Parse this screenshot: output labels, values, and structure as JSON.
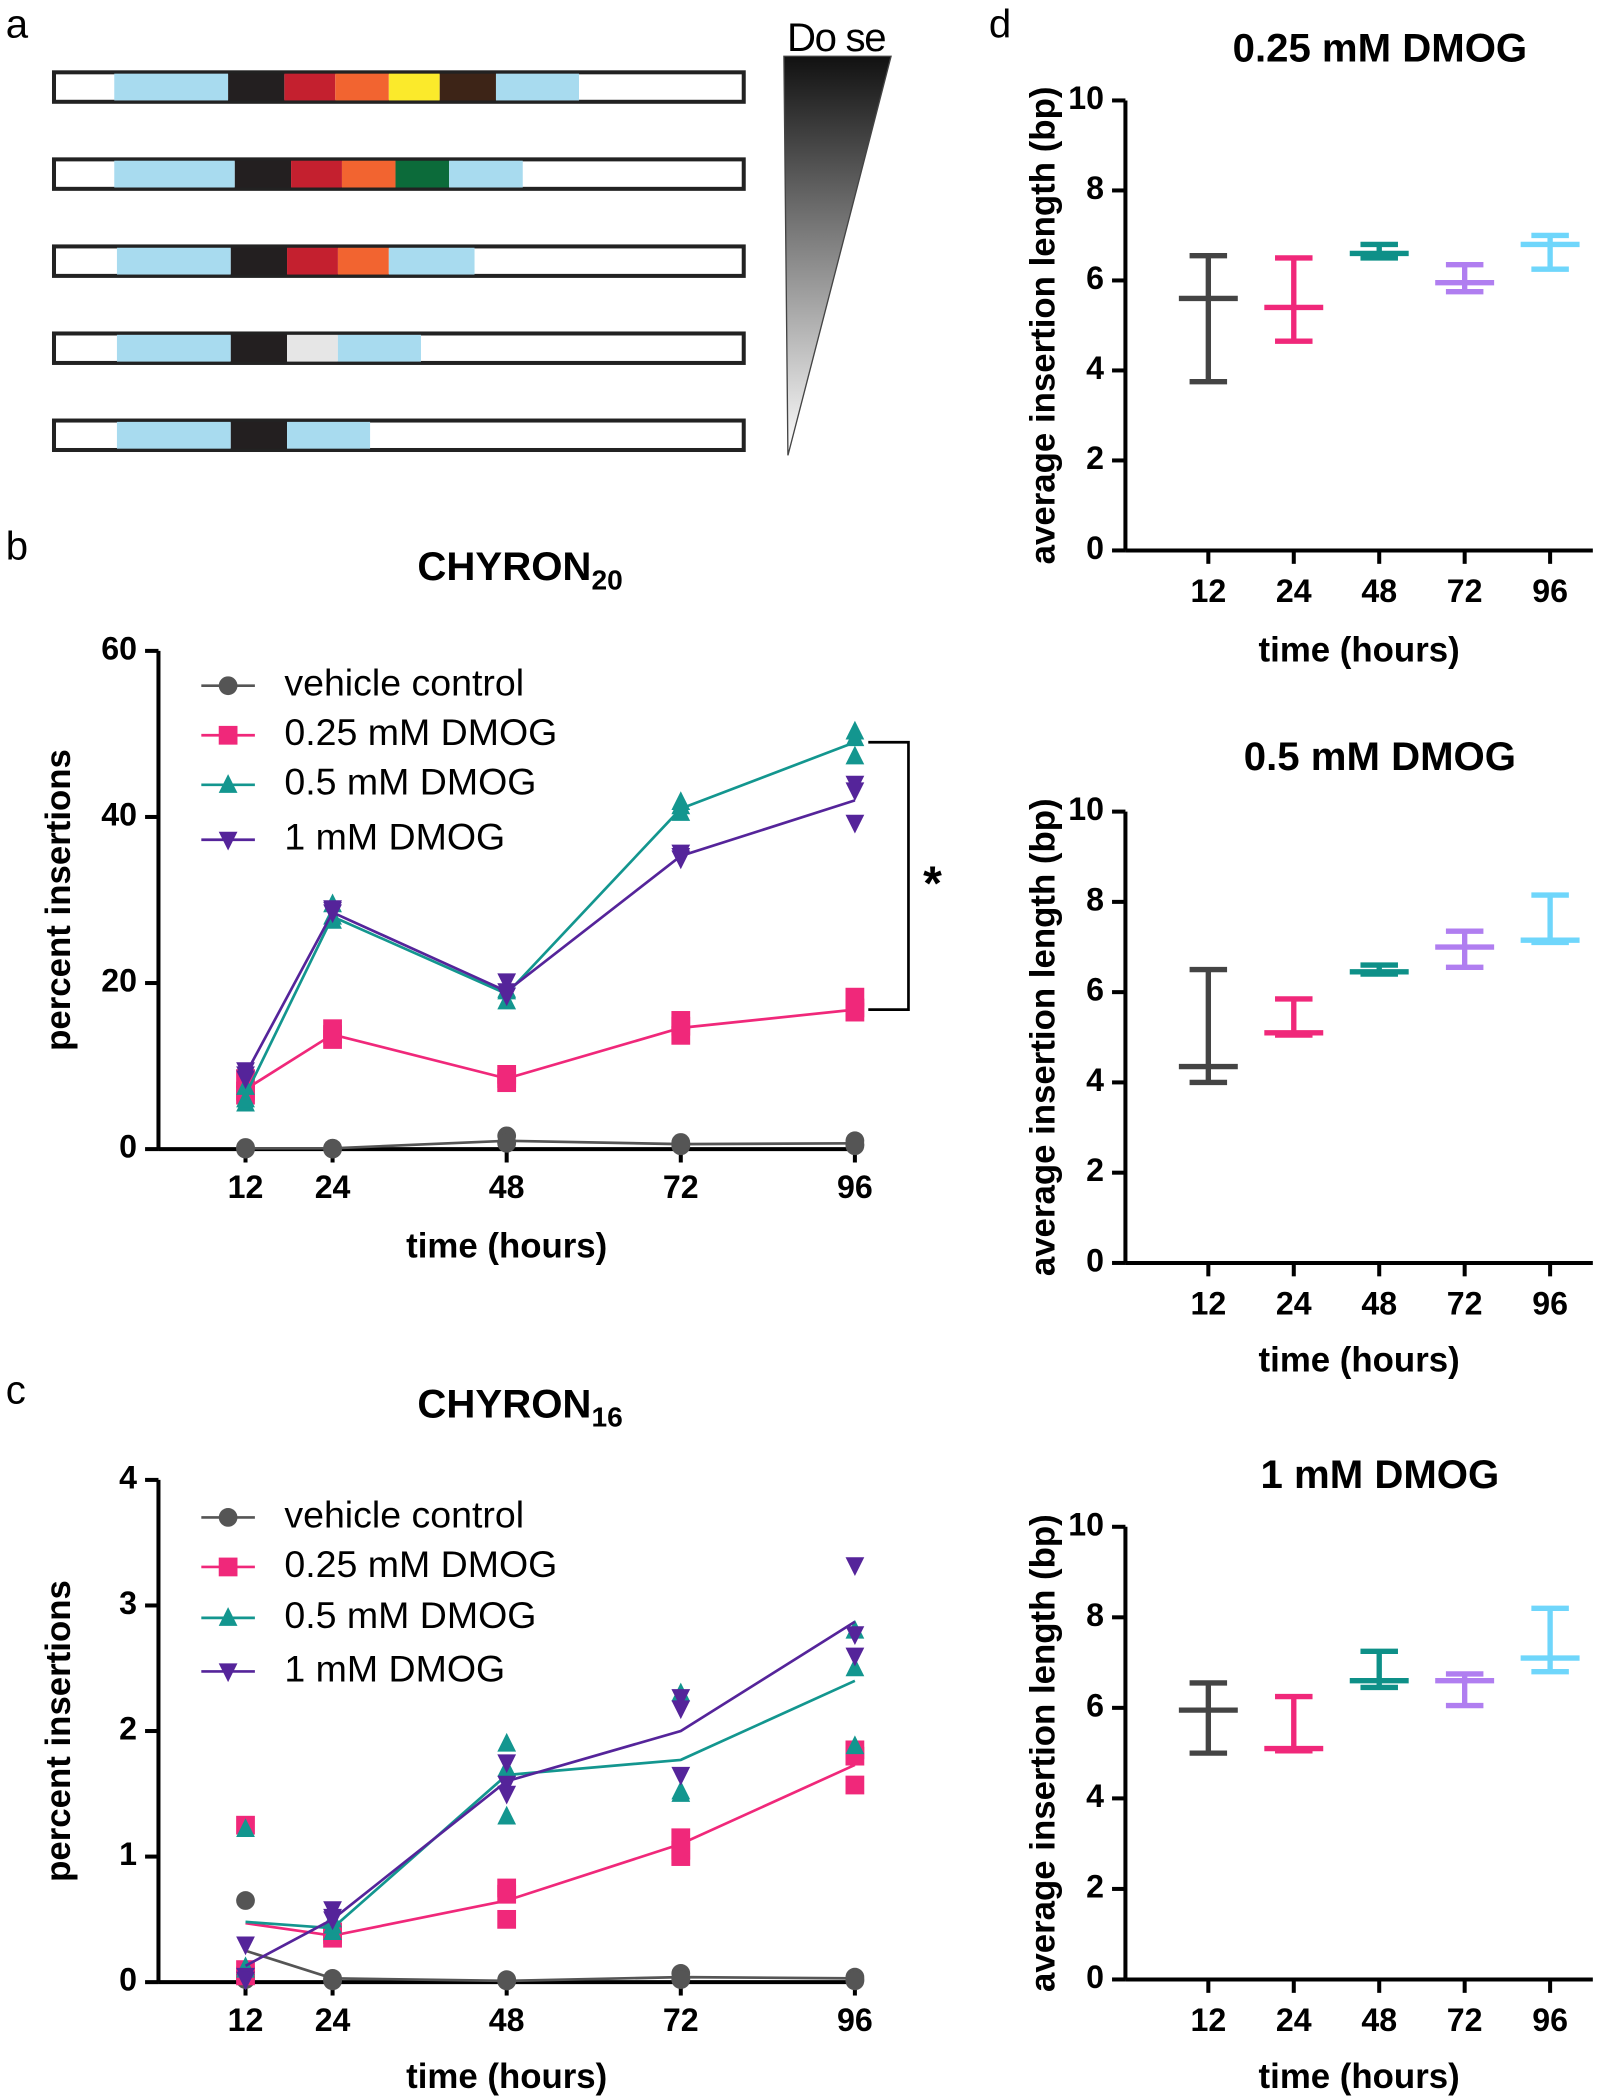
{
  "panel_labels": [
    "a",
    "b",
    "c",
    "d"
  ],
  "diagram": {
    "label": "Do se"
  },
  "chart_data": [
    {
      "type": "line",
      "title": "CHYRON",
      "title_subscript": "20",
      "xlabel": "time (hours)",
      "ylabel": "percent insertions",
      "x": [
        12,
        24,
        48,
        72,
        96
      ],
      "xlim": [
        0,
        96
      ],
      "xticks": [
        12,
        24,
        48,
        72,
        96
      ],
      "ylim": [
        0,
        60
      ],
      "yticks": [
        0,
        20,
        40,
        60
      ],
      "annotation": "*",
      "series": [
        {
          "name": "vehicle control",
          "color": "#555555",
          "marker": "circle",
          "values": [
            0.1,
            0.1,
            1.0,
            0.6,
            0.7
          ],
          "replicates": [
            [
              0,
              0.2,
              0.1
            ],
            [
              0,
              0.1,
              0.1
            ],
            [
              1.6,
              0.7,
              0.8
            ],
            [
              0.7,
              0.8,
              0.4
            ],
            [
              0.4,
              1.0,
              0.6
            ]
          ]
        },
        {
          "name": "0.25 mM DMOG",
          "color": "#f0287a",
          "marker": "square",
          "values": [
            7.2,
            13.8,
            8.5,
            14.6,
            16.8
          ],
          "replicates": [
            [
              6.5,
              8.5,
              7
            ],
            [
              13.2,
              14.5,
              13.8
            ],
            [
              8,
              9,
              8.5
            ],
            [
              13.7,
              15.5,
              14.8
            ],
            [
              16.5,
              18.3,
              17
            ]
          ]
        },
        {
          "name": "0.5 mM DMOG",
          "color": "#13968f",
          "marker": "triangle-up",
          "values": [
            6.5,
            28,
            18.7,
            41,
            49
          ],
          "replicates": [
            [
              5.5,
              7.5,
              6
            ],
            [
              27.5,
              29.5,
              28
            ],
            [
              17.8,
              19.2,
              19
            ],
            [
              40.5,
              41.8,
              41.3
            ],
            [
              47.3,
              50.3,
              49.5
            ]
          ]
        },
        {
          "name": "1 mM DMOG",
          "color": "#55249a",
          "marker": "triangle-down",
          "values": [
            9,
            28.5,
            19,
            35.3,
            42
          ],
          "replicates": [
            [
              9.5,
              8.5,
              9
            ],
            [
              28.5,
              29,
              28.8
            ],
            [
              20.2,
              19,
              18.5
            ],
            [
              35.7,
              35,
              35.3
            ],
            [
              39.3,
              43.2,
              44
            ]
          ]
        }
      ]
    },
    {
      "type": "line",
      "title": "CHYRON",
      "title_subscript": "16",
      "xlabel": "time (hours)",
      "ylabel": "percent insertions",
      "x": [
        12,
        24,
        48,
        72,
        96
      ],
      "xlim": [
        0,
        96
      ],
      "xticks": [
        12,
        24,
        48,
        72,
        96
      ],
      "ylim": [
        0,
        4
      ],
      "yticks": [
        0,
        1,
        2,
        3,
        4
      ],
      "series": [
        {
          "name": "vehicle control",
          "color": "#555555",
          "marker": "circle",
          "values": [
            0.25,
            0.03,
            0.01,
            0.04,
            0.03
          ],
          "replicates": [
            [
              0.65,
              0.02,
              0.05
            ],
            [
              0.02,
              0.03,
              0.01
            ],
            [
              0.02,
              0.01,
              0.01
            ],
            [
              0.07,
              0.03,
              0.02
            ],
            [
              0.04,
              0.02,
              0.01
            ]
          ]
        },
        {
          "name": "0.25 mM DMOG",
          "color": "#f0287a",
          "marker": "square",
          "values": [
            0.47,
            0.37,
            0.65,
            1.1,
            1.73
          ],
          "replicates": [
            [
              1.25,
              0.1,
              0.05
            ],
            [
              0.35,
              0.4,
              0.38
            ],
            [
              0.75,
              0.5,
              0.7
            ],
            [
              1.15,
              1.0,
              1.05
            ],
            [
              1.85,
              1.57,
              1.8
            ]
          ]
        },
        {
          "name": "0.5 mM DMOG",
          "color": "#13968f",
          "marker": "triangle-up",
          "values": [
            0.48,
            0.43,
            1.65,
            1.77,
            2.4
          ],
          "replicates": [
            [
              1.22,
              0.1,
              0.12
            ],
            [
              0.45,
              0.4,
              0.5
            ],
            [
              1.9,
              1.32,
              1.7
            ],
            [
              2.3,
              1.5,
              1.52
            ],
            [
              2.5,
              1.88,
              2.8
            ]
          ]
        },
        {
          "name": "1 mM DMOG",
          "color": "#55249a",
          "marker": "triangle-down",
          "values": [
            0.13,
            0.5,
            1.6,
            2.0,
            2.87
          ],
          "replicates": [
            [
              0.3,
              0.05,
              0.02
            ],
            [
              0.58,
              0.5,
              0.52
            ],
            [
              1.75,
              1.58,
              1.5
            ],
            [
              2.27,
              2.18,
              1.65
            ],
            [
              3.32,
              2.6,
              2.77
            ]
          ]
        }
      ]
    },
    {
      "type": "range",
      "title": "0.25 mM DMOG",
      "xlabel": "time (hours)",
      "ylabel": "average insertion length (bp)",
      "categories": [
        "12",
        "24",
        "48",
        "72",
        "96"
      ],
      "colors": [
        "#444444",
        "#f0287a",
        "#0e9088",
        "#b07ef0",
        "#6fd6fb"
      ],
      "ylim": [
        0,
        10
      ],
      "yticks": [
        0,
        2,
        4,
        6,
        8,
        10
      ],
      "min": [
        3.75,
        4.65,
        6.5,
        5.75,
        6.25
      ],
      "median": [
        5.6,
        5.4,
        6.6,
        5.95,
        6.8
      ],
      "max": [
        6.55,
        6.5,
        6.8,
        6.35,
        7.0
      ]
    },
    {
      "type": "range",
      "title": "0.5 mM DMOG",
      "xlabel": "time (hours)",
      "ylabel": "average insertion length (bp)",
      "categories": [
        "12",
        "24",
        "48",
        "72",
        "96"
      ],
      "colors": [
        "#444444",
        "#f0287a",
        "#0e9088",
        "#b07ef0",
        "#6fd6fb"
      ],
      "ylim": [
        0,
        10
      ],
      "yticks": [
        0,
        2,
        4,
        6,
        8,
        10
      ],
      "min": [
        4.0,
        5.05,
        6.4,
        6.55,
        7.1
      ],
      "median": [
        4.35,
        5.1,
        6.45,
        7.0,
        7.15
      ],
      "max": [
        6.5,
        5.85,
        6.6,
        7.35,
        8.15
      ]
    },
    {
      "type": "range",
      "title": "1 mM DMOG",
      "xlabel": "time (hours)",
      "ylabel": "average insertion length (bp)",
      "categories": [
        "12",
        "24",
        "48",
        "72",
        "96"
      ],
      "colors": [
        "#444444",
        "#f0287a",
        "#0e9088",
        "#b07ef0",
        "#6fd6fb"
      ],
      "ylim": [
        0,
        10
      ],
      "yticks": [
        0,
        2,
        4,
        6,
        8,
        10
      ],
      "min": [
        5.0,
        5.05,
        6.45,
        6.05,
        6.8
      ],
      "median": [
        5.95,
        5.1,
        6.6,
        6.6,
        7.1
      ],
      "max": [
        6.55,
        6.25,
        7.25,
        6.75,
        8.2
      ]
    }
  ]
}
